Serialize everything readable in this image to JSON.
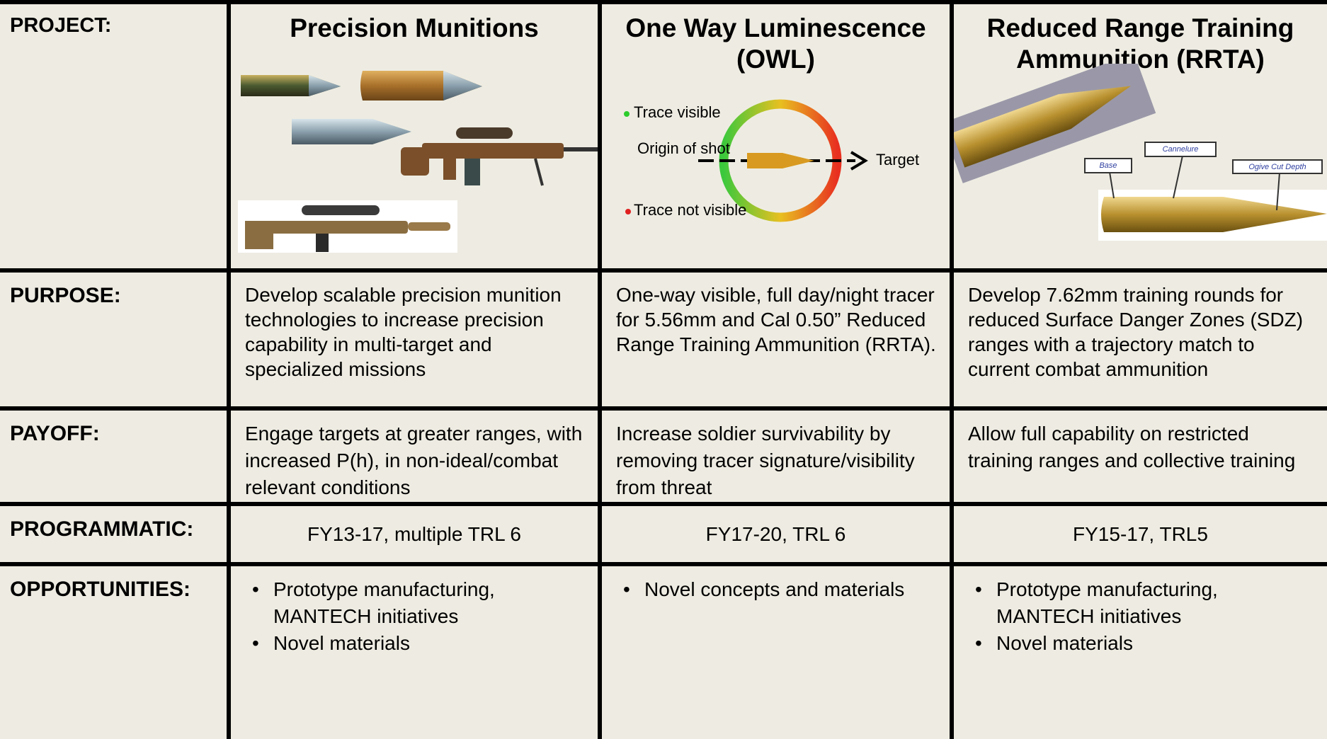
{
  "table": {
    "header": "PROJECT:",
    "columns": [
      "Precision Munitions",
      "One Way Luminescence (OWL)",
      "Reduced Range Training Ammunition (RRTA)"
    ],
    "rows": [
      {
        "label": "PURPOSE:",
        "cells": [
          "Develop scalable precision munition technologies to increase precision capability in multi-target and specialized missions",
          "One-way visible, full day/night tracer for 5.56mm and Cal 0.50” Reduced Range Training Ammunition (RRTA).",
          "Develop 7.62mm training rounds for reduced Surface Danger Zones (SDZ) ranges with a trajectory match to current combat ammunition"
        ]
      },
      {
        "label": "PAYOFF:",
        "cells": [
          "Engage targets at greater ranges, with increased P(h), in non-ideal/combat relevant conditions",
          "Increase soldier survivability by removing tracer signature/visibility from threat",
          "Allow full capability on restricted training ranges and collective training"
        ]
      },
      {
        "label": "PROGRAMMATIC:",
        "cells": [
          "FY13-17, multiple TRL 6",
          "FY17-20, TRL 6",
          "FY15-17, TRL5"
        ]
      },
      {
        "label": "OPPORTUNITIES:",
        "cells": [
          [
            "Prototype manufacturing, MANTECH initiatives",
            "Novel materials"
          ],
          [
            "Novel concepts and materials"
          ],
          [
            "Prototype manufacturing, MANTECH initiatives",
            "Novel materials"
          ]
        ]
      }
    ]
  },
  "owl_diagram": {
    "trace_visible": "Trace visible",
    "origin": "Origin of shot",
    "target": "Target",
    "trace_not_visible": "Trace not visible"
  },
  "rrta_diagram": {
    "base": "Base",
    "cannelure": "Cannelure",
    "ogive": "Ogive Cut Depth"
  }
}
